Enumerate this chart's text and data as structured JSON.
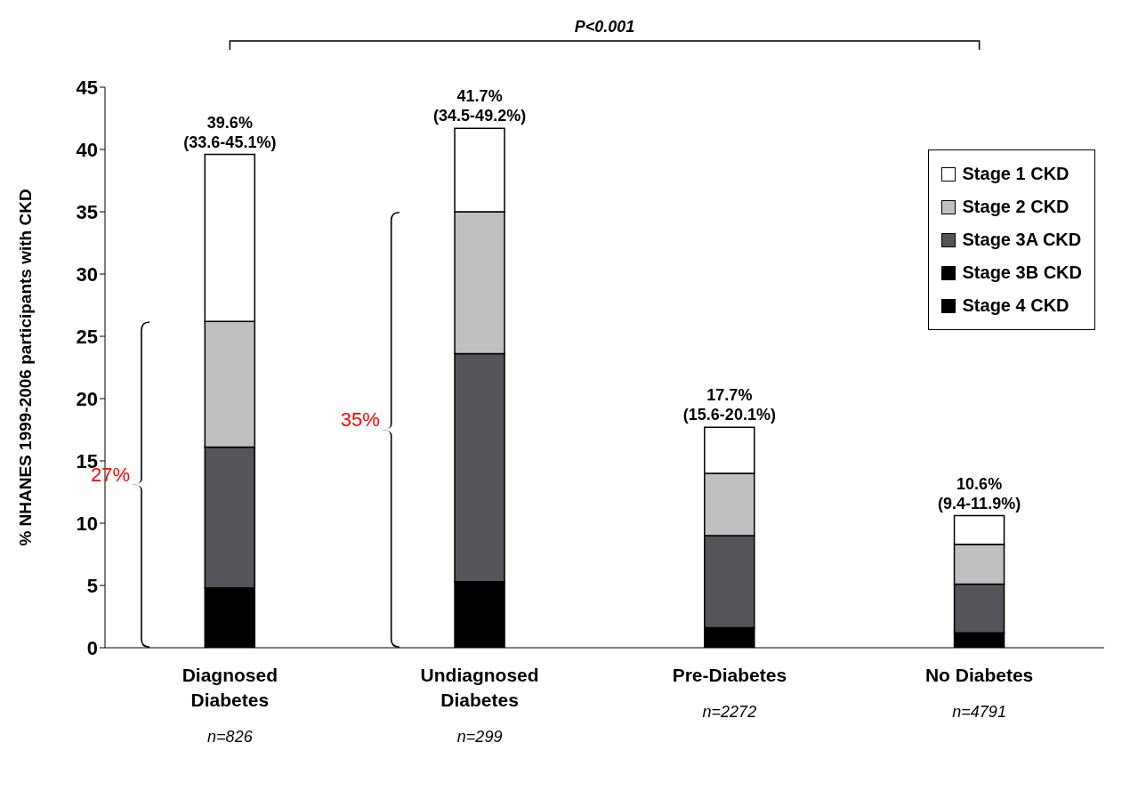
{
  "chart_data": {
    "type": "bar",
    "stacked": true,
    "ylabel": "% NHANES 1999-2006 participants with CKD",
    "categories": [
      "Diagnosed\nDiabetes\nn=826",
      "Undiagnosed\nDiabetes\nn=299",
      "Pre-Diabetes\nn=2272",
      "No Diabetes\nn=4791"
    ],
    "series": [
      {
        "name": "Stage 4 CKD",
        "color": "#000000",
        "values": [
          null,
          null,
          null,
          null
        ]
      },
      {
        "name": "Stage 3B CKD",
        "color": "#000000",
        "values": [
          4.8,
          5.3,
          1.6,
          1.2
        ]
      },
      {
        "name": "Stage 3A CKD",
        "color": "#545459",
        "values": [
          11.3,
          18.3,
          7.4,
          3.9
        ]
      },
      {
        "name": "Stage 2 CKD",
        "color": "#c0c0c2",
        "values": [
          10.1,
          11.4,
          5.0,
          3.2
        ]
      },
      {
        "name": "Stage 1 CKD",
        "color": "#ffffff",
        "values": [
          13.4,
          6.7,
          3.7,
          2.3
        ]
      }
    ],
    "totals": [
      "39.6%\n(33.6-45.1%)",
      "41.7%\n(34.5-49.2%)",
      "17.7%\n(15.6-20.1%)",
      "10.6%\n(9.4-11.9%)"
    ],
    "ylim": [
      0,
      45
    ],
    "yticks": [
      0,
      5,
      10,
      15,
      20,
      25,
      30,
      35,
      40,
      45
    ],
    "grid": false,
    "legend": "top right",
    "annotations": [
      "P<0.001",
      "27%",
      "35%"
    ]
  }
}
